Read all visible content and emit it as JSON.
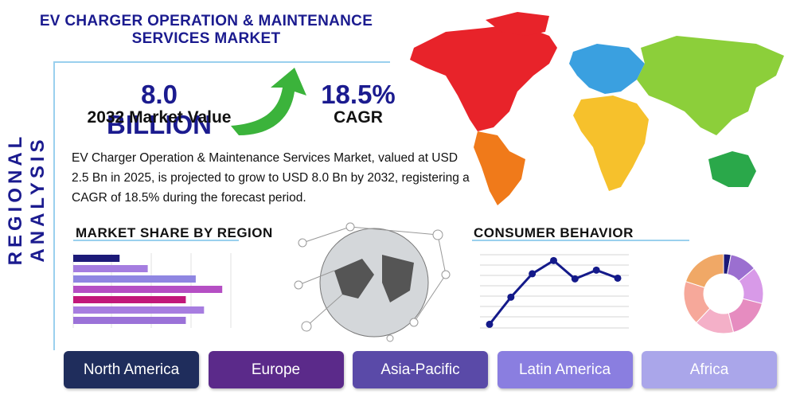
{
  "header": {
    "title": "EV CHARGER OPERATION & MAINTENANCE SERVICES MARKET",
    "side_label": "REGIONAL ANALYSIS"
  },
  "stats": [
    {
      "value": "8.0 BILLION",
      "label": "2032 Market Value"
    },
    {
      "value": "18.5%",
      "label": "CAGR"
    }
  ],
  "description": "EV Charger Operation & Maintenance Services Market, valued at USD 2.5 Bn in 2025, is projected to grow to USD 8.0 Bn by 2032, registering a CAGR of 18.5% during the forecast period.",
  "market_share": {
    "title": "MARKET SHARE BY REGION",
    "values": [
      28,
      45,
      74,
      90,
      68,
      79,
      68
    ],
    "colors": [
      "#1c1a78",
      "#a57de0",
      "#8f86e2",
      "#b54fc4",
      "#c2187a",
      "#a77de0",
      "#9b72d8"
    ]
  },
  "consumer_behavior": {
    "title": "CONSUMER BEHAVIOR",
    "values": [
      5,
      42,
      74,
      92,
      67,
      79,
      68
    ],
    "color": "#141a8a"
  },
  "donut": {
    "values": [
      3,
      11,
      15,
      17,
      16,
      18,
      20
    ],
    "colors": [
      "#1c1a78",
      "#9b6fd0",
      "#d89ae8",
      "#e68cc0",
      "#f4b0c8",
      "#f6a89a",
      "#f0a866"
    ]
  },
  "regions": [
    {
      "name": "North America",
      "color": "#1f2d5c"
    },
    {
      "name": "Europe",
      "color": "#5b2a8a"
    },
    {
      "name": "Asia-Pacific",
      "color": "#5a4aa8"
    },
    {
      "name": "Latin America",
      "color": "#8a7ee0"
    },
    {
      "name": "Africa",
      "color": "#aaa6ea"
    }
  ]
}
